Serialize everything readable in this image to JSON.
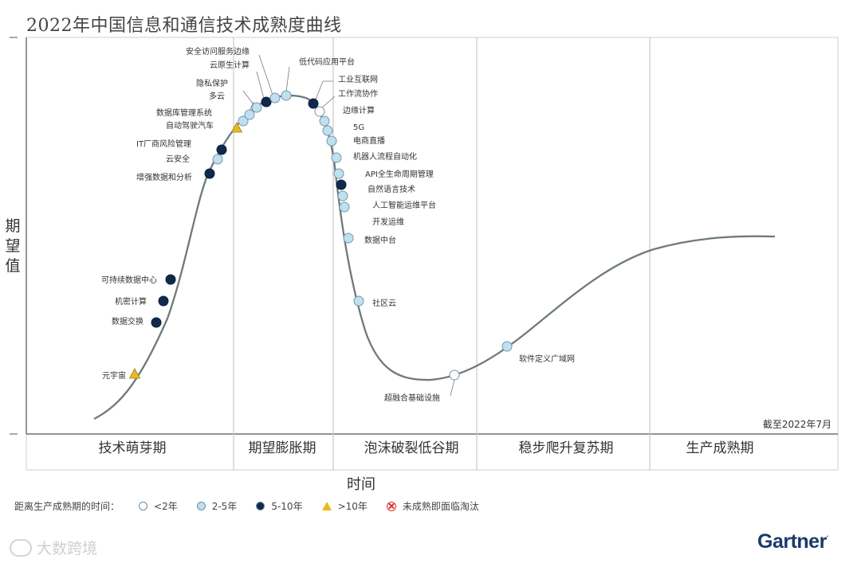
{
  "chart_data": {
    "type": "hype_cycle",
    "title": "2022年中国信息和通信技术成熟度曲线",
    "ylabel": "期望值",
    "xlabel": "时间",
    "as_of": "截至2022年7月",
    "phases": [
      "技术萌芽期",
      "期望膨胀期",
      "泡沫破裂低谷期",
      "稳步爬升复苏期",
      "生产成熟期"
    ],
    "legend_title": "距离生产成熟期的时间：",
    "legend": [
      {
        "key": "lt2",
        "label": "<2年",
        "symbol": "circle",
        "color": "#ffffff"
      },
      {
        "key": "2to5",
        "label": "2-5年",
        "symbol": "circle",
        "color": "#bfe0ef"
      },
      {
        "key": "5to10",
        "label": "5-10年",
        "symbol": "circle",
        "color": "#0f2a4d"
      },
      {
        "key": "gt10",
        "label": ">10年",
        "symbol": "triangle",
        "color": "#e8b923"
      },
      {
        "key": "obsolete",
        "label": "未成熟即面临淘汰",
        "symbol": "x-circle",
        "color": "#d33333"
      }
    ],
    "technologies": [
      {
        "name": "元宇宙",
        "category": "gt10"
      },
      {
        "name": "数据交换",
        "category": "5to10"
      },
      {
        "name": "机密计算",
        "category": "5to10"
      },
      {
        "name": "可持续数据中心",
        "category": "5to10"
      },
      {
        "name": "增强数据和分析",
        "category": "5to10"
      },
      {
        "name": "云安全",
        "category": "2to5"
      },
      {
        "name": "IT厂商风险管理",
        "category": "5to10"
      },
      {
        "name": "自动驾驶汽车",
        "category": "gt10"
      },
      {
        "name": "数据库管理系统",
        "category": "2to5"
      },
      {
        "name": "多云",
        "category": "2to5"
      },
      {
        "name": "隐私保护",
        "category": "2to5"
      },
      {
        "name": "云原生计算",
        "category": "5to10"
      },
      {
        "name": "安全访问服务边缘",
        "category": "2to5"
      },
      {
        "name": "低代码应用平台",
        "category": "2to5"
      },
      {
        "name": "工业互联网",
        "category": "5to10"
      },
      {
        "name": "工作流协作",
        "category": "lt2"
      },
      {
        "name": "边缘计算",
        "category": "2to5"
      },
      {
        "name": "5G",
        "category": "2to5"
      },
      {
        "name": "电商直播",
        "category": "2to5"
      },
      {
        "name": "机器人流程自动化",
        "category": "2to5"
      },
      {
        "name": "API全生命周期管理",
        "category": "2to5"
      },
      {
        "name": "自然语言技术",
        "category": "5to10"
      },
      {
        "name": "人工智能运维平台",
        "category": "2to5"
      },
      {
        "name": "开发运维",
        "category": "2to5"
      },
      {
        "name": "数据中台",
        "category": "2to5"
      },
      {
        "name": "社区云",
        "category": "2to5"
      },
      {
        "name": "超融合基础设施",
        "category": "lt2"
      },
      {
        "name": "软件定义广域网",
        "category": "2to5"
      }
    ]
  },
  "watermark": "大数跨境",
  "brand": "Gartner"
}
